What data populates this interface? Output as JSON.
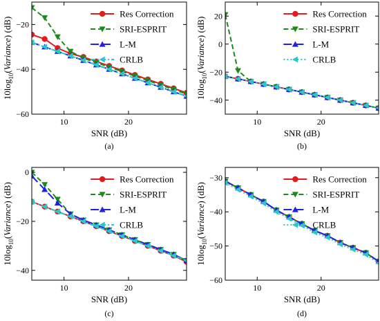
{
  "colors": {
    "Res Correction": "#e41a1c",
    "SRI-ESPRIT": "#1a8a1a",
    "L-M": "#1f1fe6",
    "CRLB": "#2cc7c7"
  },
  "chart_data": [
    {
      "type": "line",
      "panel_label": "(a)",
      "xlabel": "SNR (dB)",
      "ylabel_prefix": "10log",
      "ylabel_sub": "10",
      "ylabel_var": "Variance",
      "ylabel_suffix": " (dB)",
      "xlim": [
        5,
        29
      ],
      "ylim": [
        -60,
        -10
      ],
      "xticks": [
        10,
        20
      ],
      "yticks": [
        -60,
        -40,
        -20
      ],
      "x": [
        5,
        7,
        9,
        11,
        13,
        15,
        17,
        19,
        21,
        23,
        25,
        27,
        29
      ],
      "legend": "top-right",
      "series": [
        {
          "name": "Res Correction",
          "marker": "circle",
          "dash": "solid",
          "values": [
            -24.5,
            -26.5,
            -30.5,
            -33.0,
            -34.5,
            -36.5,
            -38.5,
            -40.5,
            -42.5,
            -44.5,
            -46.5,
            -48.5,
            -50.5
          ]
        },
        {
          "name": "SRI-ESPRIT",
          "marker": "triangle-down",
          "dash": "dashed",
          "values": [
            -12.5,
            -17.0,
            -25.5,
            -32.0,
            -35.0,
            -37.0,
            -39.0,
            -41.0,
            -43.0,
            -45.0,
            -47.0,
            -49.0,
            -51.0
          ]
        },
        {
          "name": "L-M",
          "marker": "triangle-up",
          "dash": "longdash",
          "values": [
            -28.0,
            -30.0,
            -32.0,
            -34.0,
            -36.0,
            -38.0,
            -40.0,
            -42.0,
            -44.0,
            -46.0,
            -48.0,
            -50.0,
            -52.0
          ]
        },
        {
          "name": "CRLB",
          "marker": "triangle-left",
          "dash": "dashdot",
          "values": [
            -28.0,
            -30.0,
            -32.0,
            -34.0,
            -36.0,
            -38.0,
            -40.0,
            -42.0,
            -44.0,
            -46.0,
            -48.0,
            -50.0,
            -52.0
          ]
        }
      ]
    },
    {
      "type": "line",
      "panel_label": "(b)",
      "xlabel": "SNR (dB)",
      "ylabel_prefix": "10log",
      "ylabel_sub": "10",
      "ylabel_var": "Variance",
      "ylabel_suffix": " (dB)",
      "xlim": [
        5,
        29
      ],
      "ylim": [
        -50,
        30
      ],
      "xticks": [
        10,
        20
      ],
      "yticks": [
        -40,
        -20,
        0,
        20
      ],
      "x": [
        5,
        7,
        9,
        11,
        13,
        15,
        17,
        19,
        21,
        23,
        25,
        27,
        29
      ],
      "legend": "top-right",
      "series": [
        {
          "name": "Res Correction",
          "marker": "circle",
          "dash": "solid",
          "values": [
            -23.0,
            -24.8,
            -26.7,
            -28.6,
            -30.5,
            -32.4,
            -34.3,
            -36.2,
            -38.1,
            -40.0,
            -41.9,
            -43.8,
            -45.7
          ]
        },
        {
          "name": "SRI-ESPRIT",
          "marker": "triangle-down",
          "dash": "dashed",
          "values": [
            21.0,
            -19.0,
            -26.7,
            -28.6,
            -30.5,
            -32.4,
            -34.3,
            -36.2,
            -38.1,
            -40.0,
            -41.9,
            -43.8,
            -45.7
          ]
        },
        {
          "name": "L-M",
          "marker": "triangle-up",
          "dash": "longdash",
          "values": [
            -23.0,
            -24.8,
            -26.7,
            -28.6,
            -30.5,
            -32.4,
            -34.3,
            -36.2,
            -38.1,
            -40.0,
            -41.9,
            -43.8,
            -45.7
          ]
        },
        {
          "name": "CRLB",
          "marker": "triangle-left",
          "dash": "dotted",
          "values": [
            -23.0,
            -24.8,
            -26.7,
            -28.6,
            -30.5,
            -32.4,
            -34.3,
            -36.2,
            -38.1,
            -40.0,
            -41.9,
            -43.8,
            -45.7
          ]
        }
      ]
    },
    {
      "type": "line",
      "panel_label": "(c)",
      "xlabel": "SNR (dB)",
      "ylabel_prefix": "10log",
      "ylabel_sub": "10",
      "ylabel_var": "Variance",
      "ylabel_suffix": " (dB)",
      "xlim": [
        5,
        29
      ],
      "ylim": [
        -44,
        2
      ],
      "xticks": [
        10,
        20
      ],
      "yticks": [
        -40,
        -20,
        0
      ],
      "x": [
        5,
        7,
        9,
        11,
        13,
        15,
        17,
        19,
        21,
        23,
        25,
        27,
        29
      ],
      "legend": "top-right",
      "series": [
        {
          "name": "Res Correction",
          "marker": "circle",
          "dash": "solid",
          "values": [
            -12.0,
            -14.0,
            -16.0,
            -18.0,
            -20.0,
            -22.0,
            -24.0,
            -26.0,
            -28.0,
            -30.0,
            -32.0,
            -34.0,
            -36.5
          ]
        },
        {
          "name": "SRI-ESPRIT",
          "marker": "triangle-down",
          "dash": "dashed",
          "values": [
            0.0,
            -5.0,
            -11.0,
            -17.0,
            -19.5,
            -21.5,
            -23.5,
            -25.5,
            -27.5,
            -29.5,
            -31.5,
            -33.5,
            -36.0
          ]
        },
        {
          "name": "L-M",
          "marker": "triangle-up",
          "dash": "longdash",
          "values": [
            -1.5,
            -7.0,
            -12.5,
            -17.0,
            -19.5,
            -21.5,
            -23.5,
            -25.5,
            -27.5,
            -29.5,
            -31.5,
            -33.5,
            -36.0
          ]
        },
        {
          "name": "CRLB",
          "marker": "triangle-left",
          "dash": "dashdot",
          "values": [
            -12.0,
            -14.0,
            -16.0,
            -18.0,
            -20.0,
            -22.0,
            -24.0,
            -26.0,
            -28.0,
            -30.0,
            -32.0,
            -34.0,
            -36.0
          ]
        }
      ]
    },
    {
      "type": "line",
      "panel_label": "(d)",
      "xlabel": "SNR (dB)",
      "ylabel_prefix": "10log",
      "ylabel_sub": "10",
      "ylabel_var": "Variance",
      "ylabel_suffix": " (dB)",
      "xlim": [
        5,
        29
      ],
      "ylim": [
        -60,
        -27
      ],
      "xticks": [
        10,
        20
      ],
      "yticks": [
        -60,
        -50,
        -40,
        -30
      ],
      "x": [
        5,
        7,
        9,
        11,
        13,
        15,
        17,
        19,
        21,
        23,
        25,
        27,
        29
      ],
      "legend": "top-right",
      "series": [
        {
          "name": "Res Correction",
          "marker": "circle",
          "dash": "solid",
          "values": [
            -31.0,
            -33.0,
            -35.0,
            -37.0,
            -39.5,
            -41.5,
            -43.5,
            -45.5,
            -47.0,
            -49.0,
            -50.5,
            -52.0,
            -54.5
          ]
        },
        {
          "name": "SRI-ESPRIT",
          "marker": "triangle-down",
          "dash": "dashed",
          "values": [
            -31.0,
            -33.0,
            -35.0,
            -37.0,
            -39.5,
            -41.5,
            -43.5,
            -45.5,
            -47.0,
            -49.0,
            -50.5,
            -52.0,
            -54.5
          ]
        },
        {
          "name": "L-M",
          "marker": "triangle-up",
          "dash": "longdash",
          "values": [
            -31.0,
            -33.0,
            -35.0,
            -37.0,
            -39.5,
            -41.5,
            -43.5,
            -45.5,
            -47.0,
            -49.0,
            -50.5,
            -52.0,
            -54.5
          ]
        },
        {
          "name": "CRLB",
          "marker": "triangle-left",
          "dash": "dotted",
          "values": [
            -31.5,
            -33.5,
            -35.5,
            -37.5,
            -40.0,
            -42.0,
            -44.0,
            -46.0,
            -47.5,
            -49.5,
            -51.0,
            -52.5,
            -55.0
          ]
        }
      ]
    }
  ]
}
